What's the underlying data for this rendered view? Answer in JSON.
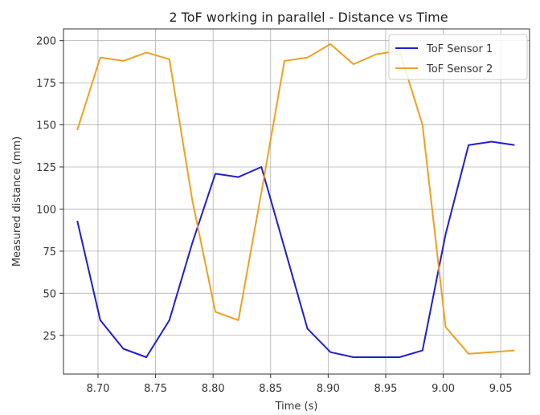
{
  "chart_data": {
    "type": "line",
    "title": "2 ToF working in parallel -  Distance vs Time",
    "xlabel": "Time (s)",
    "ylabel": "Measured distance (mm)",
    "xlim": [
      8.67,
      9.075
    ],
    "ylim": [
      2,
      207
    ],
    "xticks": [
      8.7,
      8.75,
      8.8,
      8.85,
      8.9,
      8.95,
      9.0,
      9.05
    ],
    "xtick_labels": [
      "8.70",
      "8.75",
      "8.80",
      "8.85",
      "8.90",
      "8.95",
      "9.00",
      "9.05"
    ],
    "yticks": [
      25,
      50,
      75,
      100,
      125,
      150,
      175,
      200
    ],
    "ytick_labels": [
      "25",
      "50",
      "75",
      "100",
      "125",
      "150",
      "175",
      "200"
    ],
    "grid": true,
    "legend_position": "top-right",
    "series": [
      {
        "name": "ToF Sensor 1",
        "color": "#1f1fcc",
        "x": [
          8.682,
          8.702,
          8.722,
          8.742,
          8.762,
          8.782,
          8.802,
          8.822,
          8.842,
          8.862,
          8.882,
          8.902,
          8.922,
          8.942,
          8.962,
          8.982,
          9.002,
          9.022,
          9.042,
          9.062
        ],
        "y": [
          93,
          34,
          17,
          12,
          34,
          80,
          121,
          119,
          125,
          77,
          29,
          15,
          12,
          12,
          12,
          16,
          85,
          138,
          140,
          138
        ]
      },
      {
        "name": "ToF Sensor 2",
        "color": "#f0a020",
        "x": [
          8.682,
          8.702,
          8.722,
          8.742,
          8.762,
          8.782,
          8.802,
          8.822,
          8.842,
          8.862,
          8.882,
          8.902,
          8.922,
          8.942,
          8.962,
          8.982,
          9.002,
          9.022,
          9.042,
          9.062
        ],
        "y": [
          147,
          190,
          188,
          193,
          189,
          105,
          39,
          34,
          110,
          188,
          190,
          198,
          186,
          192,
          194,
          150,
          30,
          14,
          15,
          16
        ]
      }
    ]
  }
}
